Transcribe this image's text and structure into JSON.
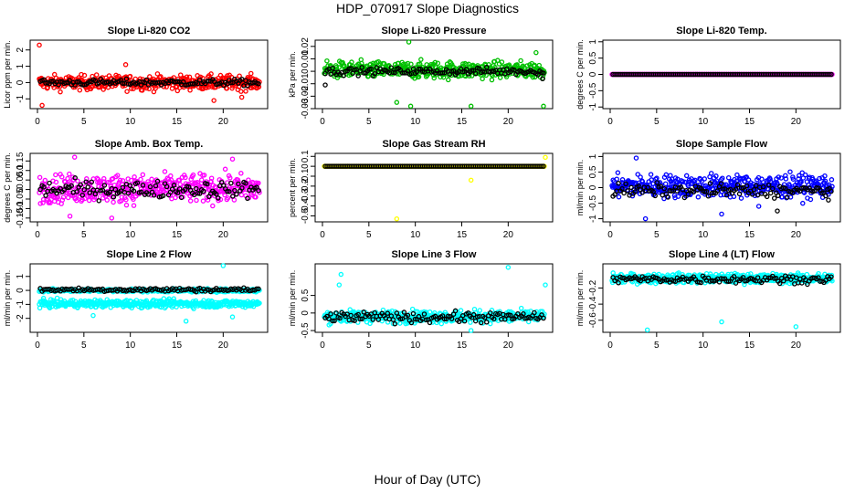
{
  "title": "HDP_070917  Slope Diagnostics",
  "xlabel": "Hour of Day (UTC)",
  "colors": {
    "co2": "#ff0000",
    "pressure": "#00c000",
    "temp": "#ff00ff",
    "box": "#ff00ff",
    "rh": "#ffff00",
    "flow": "#0000ff",
    "line": "#00ffff",
    "black": "#000000"
  },
  "chart_data": [
    {
      "type": "scatter",
      "title": "Slope Li-820 CO2",
      "ylabel": "Licor ppm per min.",
      "xlim": [
        0,
        24
      ],
      "ylim": [
        -1.6,
        2.6
      ],
      "xticks": [
        0,
        5,
        10,
        15,
        20
      ],
      "yticks": [
        -1,
        0,
        1,
        2
      ],
      "color": "#ff0000",
      "center": 0,
      "spread": 0.45,
      "black_center": 0,
      "black_spread": 0.2,
      "outliers": [
        [
          0.2,
          2.3
        ],
        [
          0.5,
          -1.4
        ],
        [
          9.5,
          1.1
        ],
        [
          19.0,
          -1.1
        ],
        [
          22.0,
          -0.9
        ]
      ],
      "black_outliers": []
    },
    {
      "type": "scatter",
      "title": "Slope Li-820 Pressure",
      "ylabel": "kPa per min.",
      "xlim": [
        0,
        24
      ],
      "ylim": [
        -0.03,
        0.025
      ],
      "xticks": [
        0,
        5,
        10,
        15,
        20
      ],
      "yticks": [
        -0.03,
        -0.02,
        -0.01,
        0,
        0.01,
        0.02
      ],
      "color": "#00c000",
      "center": 0.001,
      "spread": 0.007,
      "black_center": 0,
      "black_spread": 0.003,
      "outliers": [
        [
          8.0,
          -0.025
        ],
        [
          9.3,
          0.024
        ],
        [
          9.5,
          -0.028
        ],
        [
          16.0,
          -0.028
        ],
        [
          23.8,
          -0.028
        ],
        [
          23.0,
          0.015
        ]
      ],
      "black_outliers": [
        [
          0.3,
          -0.011
        ],
        [
          23.7,
          -0.006
        ]
      ]
    },
    {
      "type": "scatter",
      "title": "Slope Li-820 Temp.",
      "ylabel": "degrees C per min.",
      "xlim": [
        0,
        24
      ],
      "ylim": [
        -1.05,
        1.05
      ],
      "xticks": [
        0,
        5,
        10,
        15,
        20
      ],
      "yticks": [
        -1,
        -0.5,
        0,
        0.5,
        1
      ],
      "color": "#ff00ff",
      "center": 0,
      "spread": 0,
      "black_center": 0,
      "black_spread": 0,
      "outliers": [],
      "black_outliers": []
    },
    {
      "type": "scatter",
      "title": "Slope Amb. Box Temp.",
      "ylabel": "degrees C per min.",
      "xlim": [
        0,
        24
      ],
      "ylim": [
        -0.17,
        0.19
      ],
      "xticks": [
        0,
        5,
        10,
        15,
        20
      ],
      "yticks": [
        -0.15,
        -0.1,
        -0.05,
        0,
        0.05,
        0.1,
        0.15
      ],
      "color": "#ff00ff",
      "center": 0.005,
      "spread": 0.075,
      "black_center": 0,
      "black_spread": 0.045,
      "outliers": [
        [
          4.0,
          0.17
        ],
        [
          8.0,
          -0.15
        ],
        [
          3.5,
          -0.14
        ],
        [
          21.0,
          0.16
        ]
      ],
      "black_outliers": []
    },
    {
      "type": "scatter",
      "title": "Slope Gas Stream RH",
      "ylabel": "percent per min.",
      "xlim": [
        0,
        24
      ],
      "ylim": [
        -0.56,
        0.13
      ],
      "xticks": [
        0,
        5,
        10,
        15,
        20
      ],
      "yticks": [
        -0.5,
        -0.4,
        -0.3,
        -0.2,
        -0.1,
        0,
        0.1
      ],
      "color": "#ffff00",
      "center": 0,
      "spread": 0,
      "black_center": 0,
      "black_spread": 0,
      "outliers": [
        [
          8.0,
          -0.53
        ],
        [
          16.0,
          -0.14
        ],
        [
          24.0,
          0.09
        ]
      ],
      "black_outliers": []
    },
    {
      "type": "scatter",
      "title": "Slope Sample Flow",
      "ylabel": "ml/min per min.",
      "xlim": [
        0,
        24
      ],
      "ylim": [
        -1.1,
        1.1
      ],
      "xticks": [
        0,
        5,
        10,
        15,
        20
      ],
      "yticks": [
        -1,
        -0.5,
        0,
        0.5,
        1
      ],
      "color": "#0000ff",
      "center": 0.05,
      "spread": 0.38,
      "black_center": -0.1,
      "black_spread": 0.22,
      "outliers": [
        [
          3.8,
          -1.0
        ],
        [
          2.8,
          0.95
        ],
        [
          12.0,
          -0.85
        ],
        [
          16.0,
          -0.6
        ]
      ],
      "black_outliers": [
        [
          18.0,
          -0.75
        ],
        [
          23.5,
          -0.4
        ]
      ]
    },
    {
      "type": "scatter",
      "title": "Slope Line 2 Flow",
      "ylabel": "ml/min per min.",
      "xlim": [
        0,
        24
      ],
      "ylim": [
        -3.0,
        1.9
      ],
      "xticks": [
        0,
        5,
        10,
        15,
        20
      ],
      "yticks": [
        -2,
        -1,
        0,
        1
      ],
      "color": "#00ffff",
      "center": -0.95,
      "spread": 0.28,
      "band_center": 0,
      "band_spread": 0.12,
      "black_center": 0.05,
      "black_spread": 0.15,
      "outliers": [
        [
          20.0,
          1.8
        ],
        [
          16.0,
          -2.2
        ],
        [
          21.0,
          -1.9
        ],
        [
          6.0,
          -1.8
        ]
      ],
      "black_outliers": []
    },
    {
      "type": "scatter",
      "title": "Slope Line 3 Flow",
      "ylabel": "ml/min per min.",
      "xlim": [
        0,
        24
      ],
      "ylim": [
        -0.55,
        1.4
      ],
      "xticks": [
        0,
        5,
        10,
        15,
        20
      ],
      "yticks": [
        -0.5,
        0,
        0.5
      ],
      "color": "#00ffff",
      "center": -0.1,
      "spread": 0.18,
      "black_center": -0.12,
      "black_spread": 0.15,
      "outliers": [
        [
          2.0,
          1.1
        ],
        [
          1.8,
          0.8
        ],
        [
          20.0,
          1.3
        ],
        [
          24.0,
          0.8
        ],
        [
          16.0,
          -0.5
        ]
      ],
      "black_outliers": []
    },
    {
      "type": "scatter",
      "title": "Slope Line 4 (LT) Flow",
      "ylabel": "ml/min per min.",
      "xlim": [
        0,
        24
      ],
      "ylim": [
        -0.75,
        0.1
      ],
      "xticks": [
        0,
        5,
        10,
        15,
        20
      ],
      "yticks": [
        -0.6,
        -0.4,
        -0.2
      ],
      "color": "#00ffff",
      "center": -0.08,
      "spread": 0.06,
      "black_center": -0.09,
      "black_spread": 0.05,
      "outliers": [
        [
          4.0,
          -0.72
        ],
        [
          12.0,
          -0.62
        ],
        [
          20.0,
          -0.68
        ]
      ],
      "black_outliers": []
    }
  ]
}
